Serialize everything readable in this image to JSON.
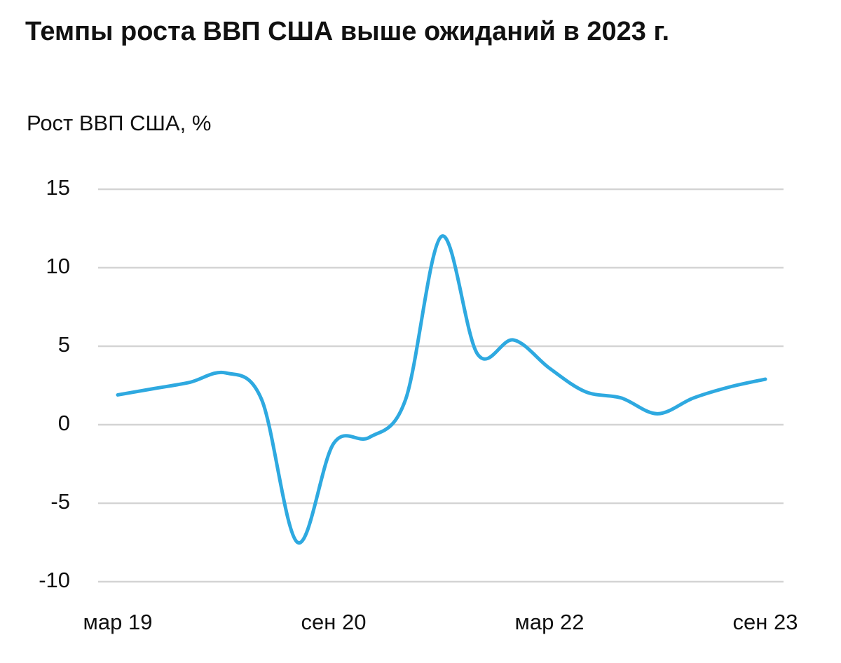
{
  "chart_data": {
    "type": "line",
    "title": "Темпы роста ВВП США выше ожиданий в 2023 г.",
    "subtitle": "Рост ВВП США, %",
    "categories": [
      "мар 19",
      null,
      null,
      null,
      null,
      null,
      "сен 20",
      null,
      null,
      null,
      null,
      null,
      "мар 22",
      null,
      null,
      null,
      null,
      null,
      "сен 23"
    ],
    "series": [
      {
        "name": "Рост ВВП США",
        "color": "#2ea9e0",
        "values": [
          1.9,
          2.3,
          2.7,
          3.3,
          1.6,
          -7.5,
          -1.2,
          -0.8,
          1.6,
          12.0,
          4.5,
          5.4,
          3.6,
          2.1,
          1.7,
          0.7,
          1.7,
          2.4,
          2.9
        ]
      }
    ],
    "ylim": [
      -10,
      15
    ],
    "yticks": [
      -10,
      -5,
      0,
      5,
      10,
      15
    ],
    "grid": true
  }
}
